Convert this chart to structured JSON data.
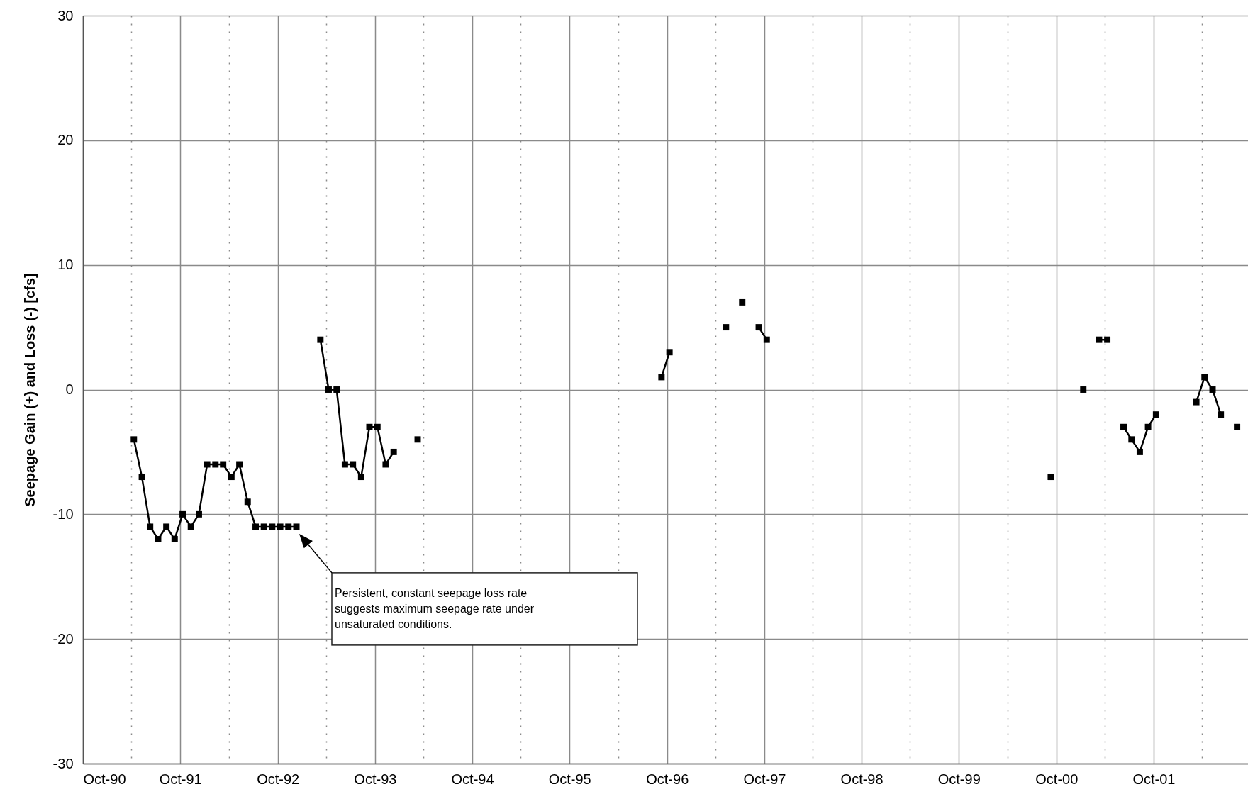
{
  "chart_data": {
    "type": "line",
    "ylabel": "Seepage Gain (+) and Loss (-) [cfs]",
    "xlim": [
      "1990-10-01",
      "2002-09-20"
    ],
    "ylim": [
      -30,
      30
    ],
    "yticks": [
      -30,
      -20,
      -10,
      0,
      10,
      20,
      30
    ],
    "xticks": [
      {
        "value": "1990-10-01",
        "label": "Oct-90"
      },
      {
        "value": "1991-04-01",
        "label": null
      },
      {
        "value": "1991-10-01",
        "label": "Oct-91"
      },
      {
        "value": "1992-04-01",
        "label": null
      },
      {
        "value": "1992-10-01",
        "label": "Oct-92"
      },
      {
        "value": "1993-04-01",
        "label": null
      },
      {
        "value": "1993-10-01",
        "label": "Oct-93"
      },
      {
        "value": "1994-04-01",
        "label": null
      },
      {
        "value": "1994-10-01",
        "label": "Oct-94"
      },
      {
        "value": "1995-04-01",
        "label": null
      },
      {
        "value": "1995-10-01",
        "label": "Oct-95"
      },
      {
        "value": "1996-04-01",
        "label": null
      },
      {
        "value": "1996-10-01",
        "label": "Oct-96"
      },
      {
        "value": "1997-04-01",
        "label": null
      },
      {
        "value": "1997-10-01",
        "label": "Oct-97"
      },
      {
        "value": "1998-04-01",
        "label": null
      },
      {
        "value": "1998-10-01",
        "label": "Oct-98"
      },
      {
        "value": "1999-04-01",
        "label": null
      },
      {
        "value": "1999-10-01",
        "label": "Oct-99"
      },
      {
        "value": "2000-04-01",
        "label": null
      },
      {
        "value": "2000-10-01",
        "label": "Oct-00"
      },
      {
        "value": "2001-04-01",
        "label": null
      },
      {
        "value": "2001-10-01",
        "label": "Oct-01"
      },
      {
        "value": "2002-04-01",
        "label": null
      }
    ],
    "grid": true,
    "marker": "square",
    "line_style": "solid",
    "series": [
      {
        "color": "#000000",
        "x": [
          "1991-04-10",
          "1991-05-10",
          "1991-06-10",
          "1991-07-10",
          "1991-08-10",
          "1991-09-10",
          "1991-10-10",
          "1991-11-10",
          "1991-12-10",
          "1992-01-10",
          "1992-02-10",
          "1992-03-10",
          "1992-04-10",
          "1992-05-10",
          "1992-06-10",
          "1992-07-10",
          "1992-08-10",
          "1992-09-10",
          "1992-10-10",
          "1992-11-10",
          "1992-12-10",
          "1993-01-10",
          "1993-03-10",
          "1993-04-10",
          "1993-05-10",
          "1993-06-10",
          "1993-07-10",
          "1993-08-10",
          "1993-09-10",
          "1993-10-10",
          "1993-11-10",
          "1993-12-10",
          "1994-01-10",
          "1994-03-10",
          "1994-04-10",
          "1996-09-10",
          "1996-10-10",
          "1996-11-10",
          "1997-05-10",
          "1997-06-10",
          "1997-07-10",
          "1997-08-10",
          "1997-09-10",
          "1997-10-10",
          "1997-11-10",
          "2000-09-10",
          "2000-10-10",
          "2001-01-10",
          "2001-02-10",
          "2001-03-10",
          "2001-04-10",
          "2001-05-10",
          "2001-06-10",
          "2001-07-10",
          "2001-08-10",
          "2001-09-10",
          "2001-10-10",
          "2001-11-10",
          "2002-03-10",
          "2002-04-10",
          "2002-05-10",
          "2002-06-10",
          "2002-07-10",
          "2002-08-10"
        ],
        "values": [
          -4,
          -7,
          -11,
          -12,
          -11,
          -12,
          -10,
          -11,
          -10,
          -6,
          -6,
          -6,
          -7,
          -6,
          -9,
          -11,
          -11,
          -11,
          -11,
          -11,
          -11,
          null,
          4,
          0,
          0,
          -6,
          -6,
          -7,
          -3,
          -3,
          -6,
          -5,
          null,
          -4,
          null,
          1,
          3,
          null,
          5,
          null,
          7,
          null,
          5,
          4,
          null,
          -7,
          null,
          0,
          null,
          4,
          4,
          null,
          -3,
          -4,
          -5,
          -3,
          -2,
          null,
          -1,
          1,
          0,
          -2,
          null,
          -3
        ]
      }
    ],
    "annotations": [
      "Persistent, constant seepage loss rate\nsuggests maximum seepage rate under\nunsaturated conditions."
    ]
  }
}
